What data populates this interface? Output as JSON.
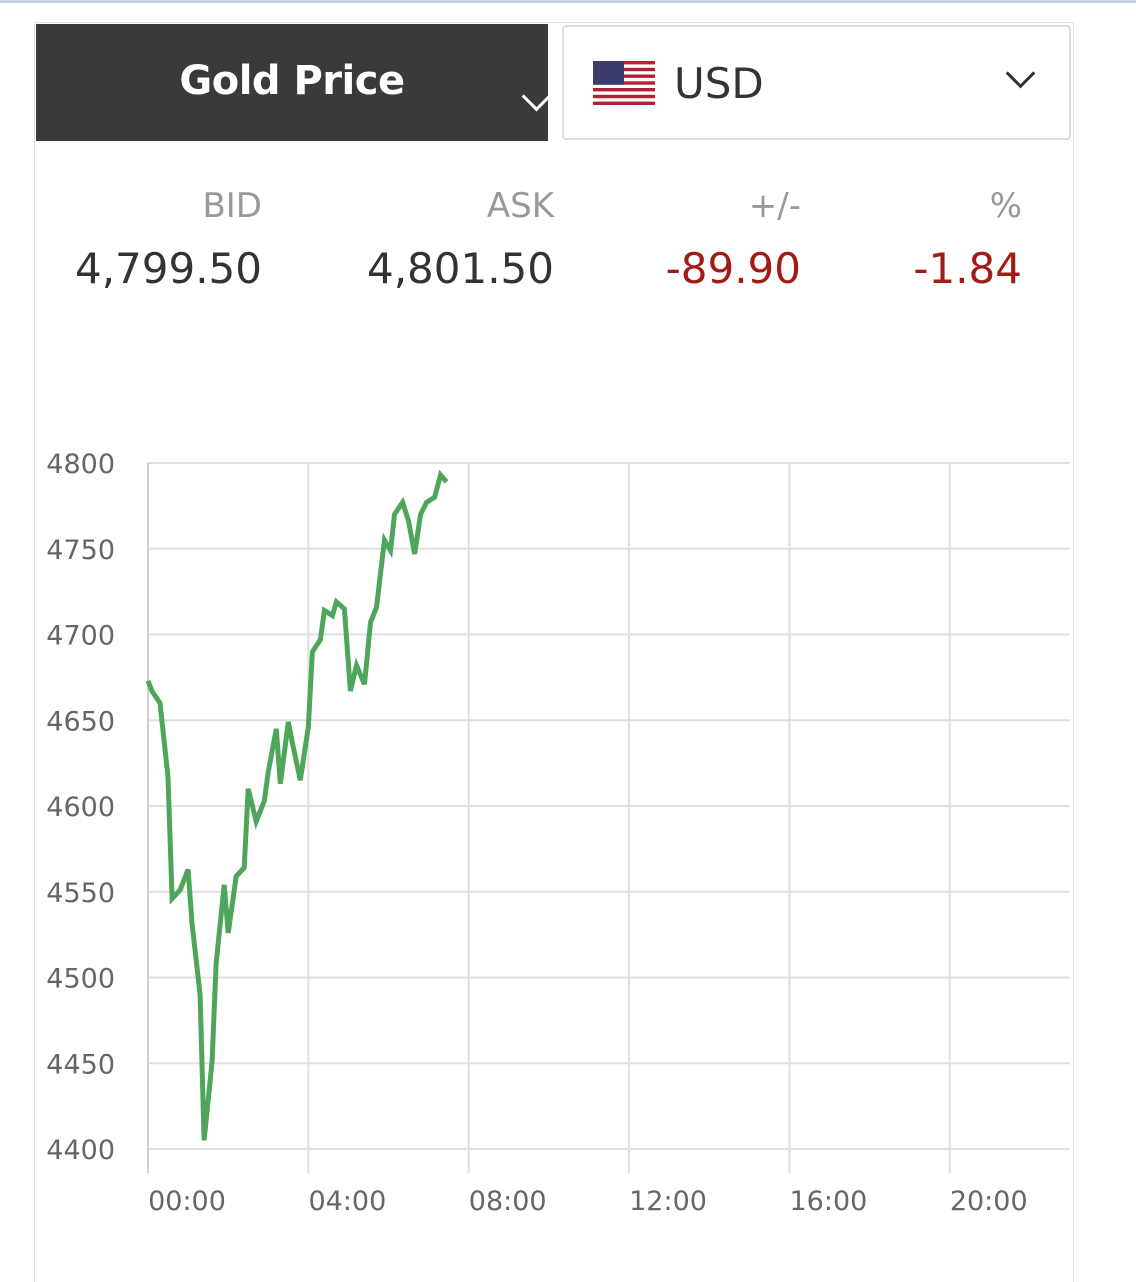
{
  "header": {
    "metal_selector": {
      "label": "Gold Price",
      "icon": "chevron-down-icon"
    },
    "currency_selector": {
      "label": "USD",
      "flag": "us-flag-icon",
      "icon": "chevron-down-icon"
    }
  },
  "quote": {
    "bid": {
      "label": "BID",
      "value": "4,799.50"
    },
    "ask": {
      "label": "ASK",
      "value": "4,801.50"
    },
    "change": {
      "label": "+/-",
      "value": "-89.90"
    },
    "percent": {
      "label": "%",
      "value": "-1.84"
    }
  },
  "colors": {
    "header_bg": "#3a3a3a",
    "negative": "#a31b17",
    "line": "#4ea65a",
    "grid": "#e0e0e0"
  },
  "chart_data": {
    "type": "line",
    "title": "",
    "xlabel": "",
    "ylabel": "",
    "x_unit": "hours",
    "xlim": [
      0,
      23
    ],
    "ylim": [
      4400,
      4800
    ],
    "grid": true,
    "x_ticks": [
      {
        "value": 0,
        "label": "00:00"
      },
      {
        "value": 4,
        "label": "04:00"
      },
      {
        "value": 8,
        "label": "08:00"
      },
      {
        "value": 12,
        "label": "12:00"
      },
      {
        "value": 16,
        "label": "16:00"
      },
      {
        "value": 20,
        "label": "20:00"
      }
    ],
    "y_ticks": [
      4800,
      4750,
      4700,
      4650,
      4600,
      4550,
      4500,
      4450,
      4400
    ],
    "series": [
      {
        "color": "#4ea65a",
        "x": [
          0.0,
          0.1,
          0.3,
          0.5,
          0.6,
          0.8,
          1.0,
          1.1,
          1.3,
          1.4,
          1.6,
          1.7,
          1.9,
          2.0,
          2.2,
          2.4,
          2.5,
          2.7,
          2.9,
          3.0,
          3.2,
          3.3,
          3.5,
          3.6,
          3.8,
          4.0,
          4.1,
          4.3,
          4.4,
          4.6,
          4.7,
          4.9,
          5.05,
          5.2,
          5.4,
          5.55,
          5.7,
          5.9,
          6.05,
          6.15,
          6.35,
          6.5,
          6.65,
          6.8,
          6.95,
          7.15,
          7.3,
          7.45
        ],
        "y": [
          4673,
          4667,
          4660,
          4617,
          4546,
          4551,
          4563,
          4531,
          4490,
          4405,
          4451,
          4508,
          4554,
          4526,
          4559,
          4564,
          4610,
          4591,
          4603,
          4620,
          4645,
          4613,
          4649,
          4637,
          4615,
          4646,
          4690,
          4697,
          4714,
          4711,
          4719,
          4715,
          4667,
          4682,
          4671,
          4707,
          4716,
          4755,
          4749,
          4770,
          4777,
          4766,
          4747,
          4770,
          4777,
          4780,
          4793,
          4789
        ]
      }
    ]
  }
}
